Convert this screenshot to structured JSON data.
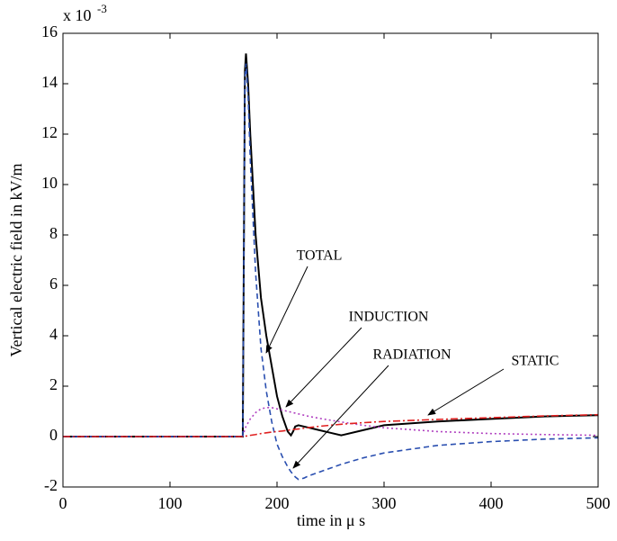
{
  "chart_data": {
    "type": "line",
    "xlabel": "time  in   μ s",
    "ylabel": "Vertical electric field  in  kV/m",
    "y_scale_label": "x 10",
    "y_scale_exponent": "-3",
    "x": [
      0,
      165,
      168,
      170,
      171,
      173,
      175,
      180,
      185,
      190,
      195,
      200,
      205,
      210,
      213,
      215,
      217,
      220,
      225,
      230,
      240,
      250,
      260,
      280,
      300,
      350,
      400,
      450,
      500
    ],
    "series": [
      {
        "name": "TOTAL",
        "color": "#000000",
        "dash": "solid",
        "values": [
          0,
          0,
          0,
          14.5,
          15.2,
          14,
          12,
          8,
          5.5,
          4,
          2.8,
          1.6,
          0.8,
          0.2,
          0.05,
          0.2,
          0.4,
          0.45,
          0.4,
          0.35,
          0.25,
          0.15,
          0.05,
          0.25,
          0.45,
          0.6,
          0.7,
          0.8,
          0.85
        ]
      },
      {
        "name": "INDUCTION",
        "color": "#b040c0",
        "dash": "dotted",
        "values": [
          0,
          0,
          0,
          0.3,
          0.4,
          0.55,
          0.7,
          0.95,
          1.1,
          1.15,
          1.15,
          1.1,
          1.05,
          1.0,
          0.97,
          0.95,
          0.93,
          0.9,
          0.85,
          0.8,
          0.72,
          0.65,
          0.58,
          0.45,
          0.35,
          0.2,
          0.12,
          0.08,
          0.05
        ]
      },
      {
        "name": "RADIATION",
        "color": "#2a4fb0",
        "dash": "dashed",
        "values": [
          0,
          0,
          0,
          14.2,
          14.8,
          13.5,
          11,
          6.5,
          3.5,
          1.8,
          0.6,
          -0.3,
          -0.8,
          -1.2,
          -1.4,
          -1.5,
          -1.6,
          -1.7,
          -1.65,
          -1.55,
          -1.4,
          -1.25,
          -1.1,
          -0.85,
          -0.65,
          -0.35,
          -0.2,
          -0.1,
          -0.05
        ]
      },
      {
        "name": "STATIC",
        "color": "#e02020",
        "dash": "dashdot",
        "values": [
          0,
          0,
          0,
          0.01,
          0.02,
          0.03,
          0.05,
          0.08,
          0.12,
          0.15,
          0.18,
          0.2,
          0.22,
          0.25,
          0.27,
          0.28,
          0.29,
          0.3,
          0.33,
          0.36,
          0.41,
          0.45,
          0.49,
          0.55,
          0.6,
          0.68,
          0.75,
          0.82,
          0.87
        ]
      }
    ],
    "xlim": [
      0,
      500
    ],
    "xticks": [
      0,
      100,
      200,
      300,
      400,
      500
    ],
    "ylim": [
      -2,
      16
    ],
    "yticks": [
      -2,
      0,
      2,
      4,
      6,
      8,
      10,
      12,
      14,
      16
    ],
    "grid": false
  }
}
